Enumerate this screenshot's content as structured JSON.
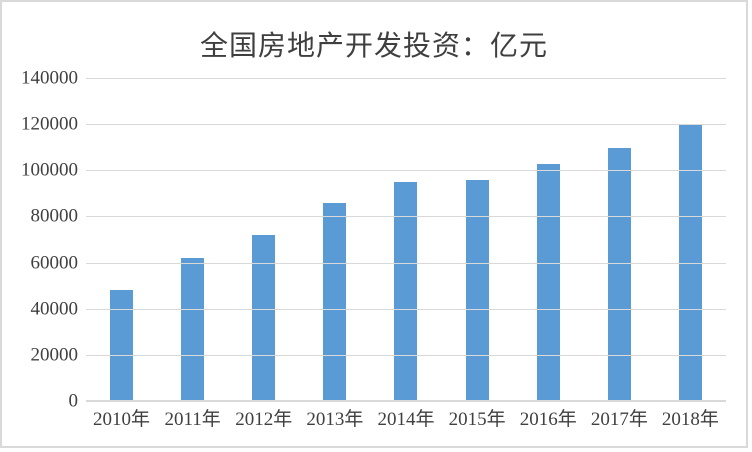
{
  "chart_data": {
    "type": "bar",
    "title": "全国房地产开发投资：亿元",
    "categories": [
      "2010年",
      "2011年",
      "2012年",
      "2013年",
      "2014年",
      "2015年",
      "2016年",
      "2017年",
      "2018年"
    ],
    "values": [
      48267,
      61797,
      71804,
      86013,
      95036,
      95979,
      102581,
      109799,
      120264
    ],
    "ylim": [
      0,
      140000
    ],
    "ytick_interval": 20000,
    "ytick_labels": [
      "140000",
      "120000",
      "100000",
      "80000",
      "60000",
      "40000",
      "20000",
      "0"
    ],
    "xlabel": "",
    "ylabel": "",
    "legend": "none",
    "grid": true,
    "colors": {
      "bar": "#5B9BD5",
      "gridline": "#D9D9D9",
      "axis_line": "#D9D9D9",
      "tick_text": "#404040",
      "title_text": "#3F3F3F",
      "frame_border": "#D9D9D9",
      "background": "#FFFFFF"
    }
  }
}
